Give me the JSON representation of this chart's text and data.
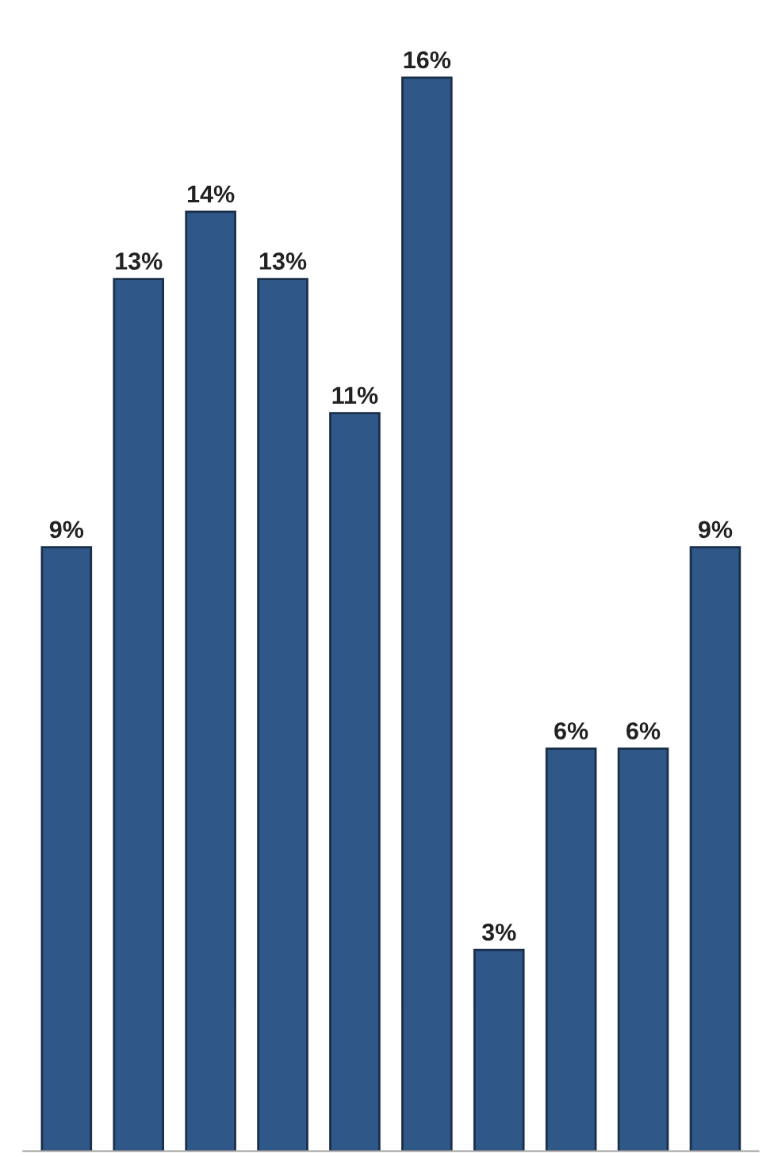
{
  "chart_data": {
    "type": "bar",
    "categories": [
      null,
      null,
      null,
      null,
      null,
      null,
      null,
      null,
      null,
      null
    ],
    "values": [
      9,
      13,
      14,
      13,
      11,
      16,
      3,
      6,
      6,
      9
    ],
    "value_labels": [
      "9%",
      "13%",
      "14%",
      "13%",
      "11%",
      "16%",
      "3%",
      "6%",
      "6%",
      "9%"
    ],
    "color": "#2f5787",
    "grid": false,
    "legend": false
  }
}
